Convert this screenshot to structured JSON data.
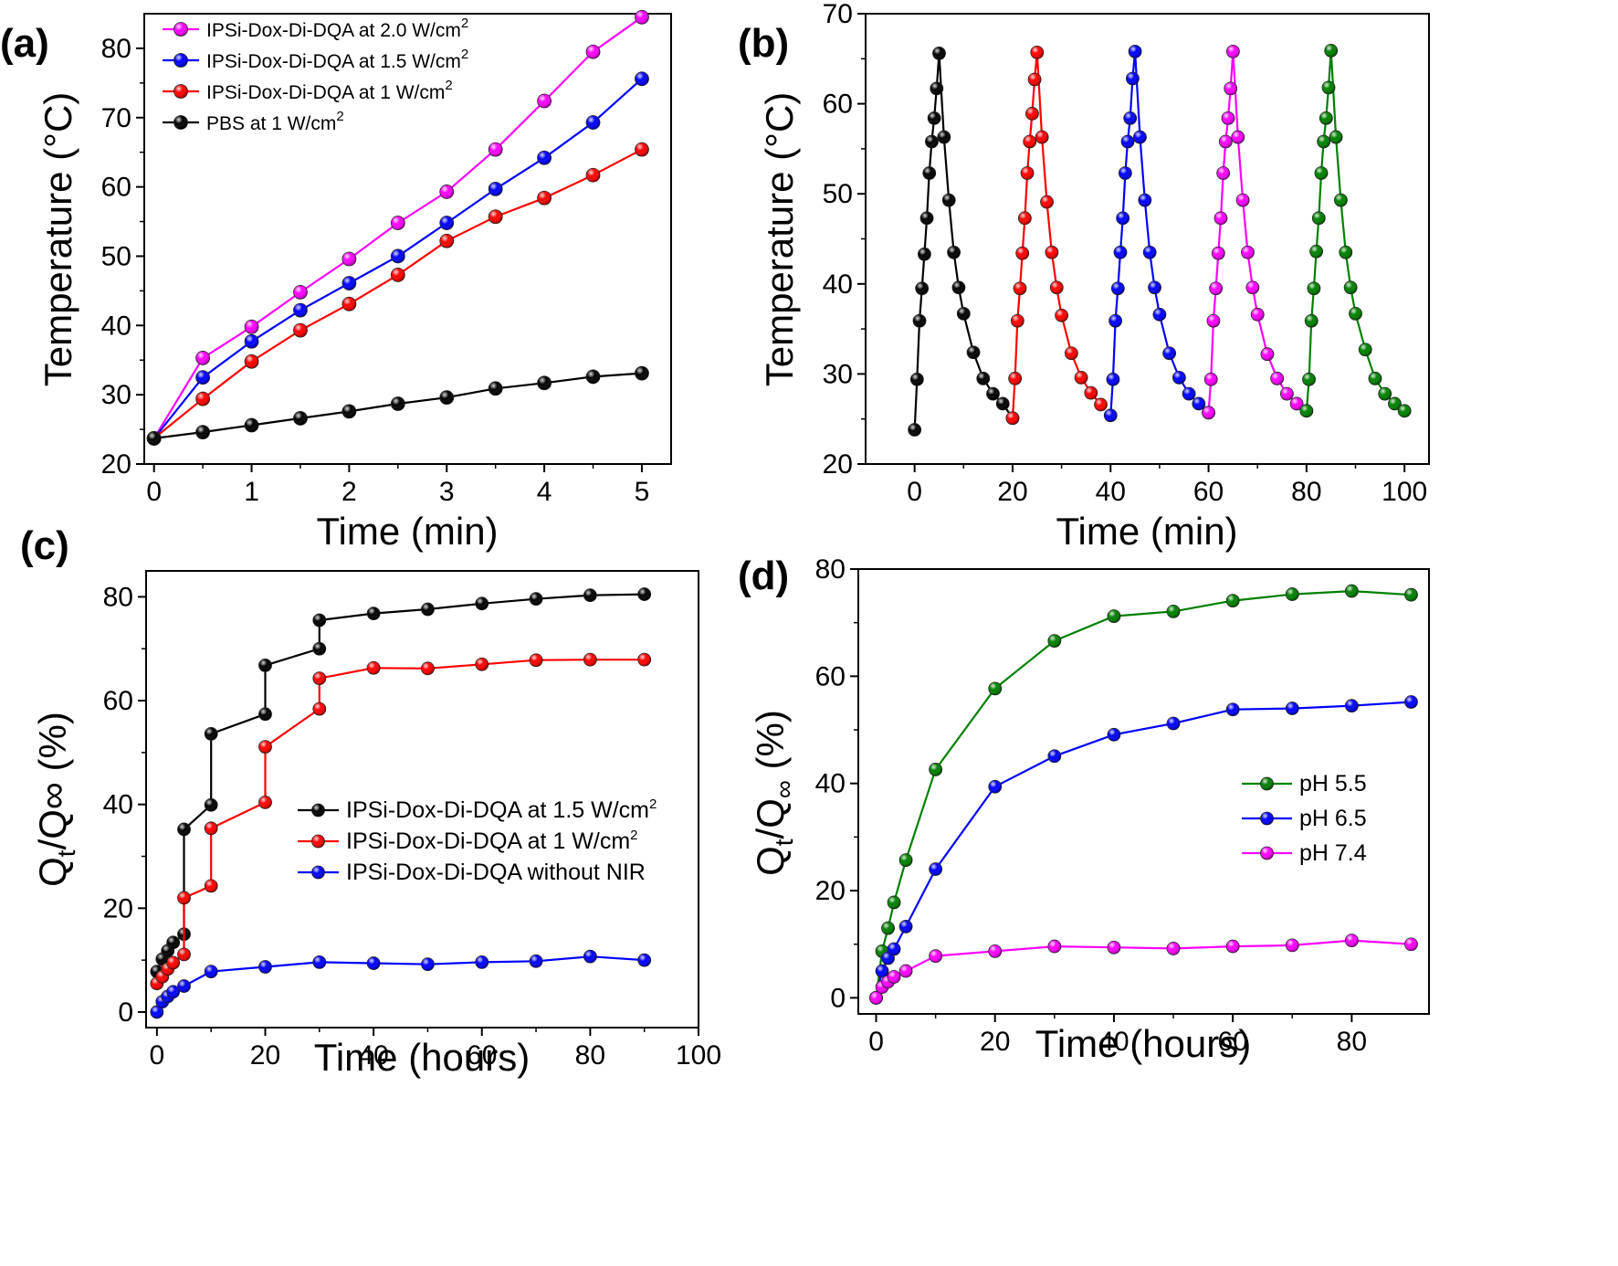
{
  "panels": {
    "a": {
      "label": "(a)"
    },
    "b": {
      "label": "(b)"
    },
    "c": {
      "label": "(c)"
    },
    "d": {
      "label": "(d)"
    }
  },
  "chart_data": [
    {
      "id": "a",
      "type": "line",
      "xlabel": "Time (min)",
      "ylabel": "Temperature (°C)",
      "xlim": [
        -0.1,
        5.3
      ],
      "ylim": [
        20,
        85
      ],
      "xticks": [
        0,
        1,
        2,
        3,
        4,
        5
      ],
      "yticks": [
        20,
        30,
        40,
        50,
        60,
        70,
        80
      ],
      "legend_position": "top-left",
      "series": [
        {
          "name": "IPSi-Dox-Di-DQA at 2.0 W/cm",
          "sup": "2",
          "color": "#ff00ff",
          "x": [
            0,
            0.5,
            1,
            1.5,
            2,
            2.5,
            3,
            3.5,
            4,
            4.5,
            5
          ],
          "y": [
            23.7,
            35.3,
            39.8,
            44.8,
            49.6,
            54.8,
            59.3,
            65.4,
            72.4,
            79.5,
            84.5
          ]
        },
        {
          "name": "IPSi-Dox-Di-DQA at 1.5 W/cm",
          "sup": "2",
          "color": "#0000ff",
          "x": [
            0,
            0.5,
            1,
            1.5,
            2,
            2.5,
            3,
            3.5,
            4,
            4.5,
            5
          ],
          "y": [
            23.7,
            32.5,
            37.7,
            42.2,
            46.1,
            50.0,
            54.8,
            59.7,
            64.2,
            69.3,
            75.6
          ]
        },
        {
          "name": "IPSi-Dox-Di-DQA at 1 W/cm",
          "sup": "2",
          "color": "#ff0000",
          "x": [
            0,
            0.5,
            1,
            1.5,
            2,
            2.5,
            3,
            3.5,
            4,
            4.5,
            5
          ],
          "y": [
            23.7,
            29.4,
            34.8,
            39.3,
            43.1,
            47.3,
            52.2,
            55.7,
            58.4,
            61.7,
            65.4
          ]
        },
        {
          "name": "PBS at 1 W/cm",
          "sup": "2",
          "color": "#000000",
          "x": [
            0,
            0.5,
            1,
            1.5,
            2,
            2.5,
            3,
            3.5,
            4,
            4.5,
            5
          ],
          "y": [
            23.7,
            24.6,
            25.6,
            26.6,
            27.6,
            28.7,
            29.6,
            30.9,
            31.7,
            32.6,
            33.1
          ]
        }
      ]
    },
    {
      "id": "b",
      "type": "line",
      "xlabel": "Time (min)",
      "ylabel": "Temperature (°C)",
      "xlim": [
        -10,
        105
      ],
      "ylim": [
        20,
        70
      ],
      "xticks": [
        0,
        20,
        40,
        60,
        80,
        100
      ],
      "yticks": [
        20,
        30,
        40,
        50,
        60,
        70
      ],
      "series": [
        {
          "color": "#000000",
          "x": [
            0,
            0.5,
            1,
            1.5,
            2,
            2.5,
            3,
            3.5,
            4,
            4.5,
            5,
            6,
            7,
            8,
            9,
            10,
            12,
            14,
            16,
            18,
            20
          ],
          "y": [
            23.8,
            29.4,
            35.9,
            39.5,
            43.3,
            47.3,
            52.3,
            55.8,
            58.4,
            61.7,
            65.6,
            56.3,
            49.3,
            43.5,
            39.6,
            36.7,
            32.4,
            29.5,
            27.8,
            26.7,
            25.1
          ]
        },
        {
          "color": "#ff0000",
          "x": [
            20,
            20.5,
            21,
            21.5,
            22,
            22.5,
            23,
            23.5,
            24,
            24.5,
            25,
            26,
            27,
            28,
            29,
            30,
            32,
            34,
            36,
            38
          ],
          "y": [
            25.1,
            29.5,
            35.9,
            39.5,
            43.4,
            47.3,
            52.3,
            55.8,
            58.9,
            62.7,
            65.7,
            56.3,
            49.1,
            43.5,
            39.6,
            36.5,
            32.3,
            29.6,
            27.9,
            26.6
          ]
        },
        {
          "color": "#0000ff",
          "x": [
            40,
            40.5,
            41,
            41.5,
            42,
            42.5,
            43,
            43.5,
            44,
            44.5,
            45,
            46,
            47,
            48,
            49,
            50,
            52,
            54,
            56,
            58,
            60
          ],
          "y": [
            25.4,
            29.4,
            35.9,
            39.5,
            43.5,
            47.3,
            52.3,
            55.8,
            58.4,
            62.8,
            65.8,
            56.3,
            49.3,
            43.5,
            39.6,
            36.6,
            32.3,
            29.6,
            27.8,
            26.7,
            25.7
          ]
        },
        {
          "color": "#ff00ff",
          "x": [
            60,
            60.5,
            61,
            61.5,
            62,
            62.5,
            63,
            63.5,
            64,
            64.5,
            65,
            66,
            67,
            68,
            69,
            70,
            72,
            74,
            76,
            78
          ],
          "y": [
            25.7,
            29.4,
            35.9,
            39.5,
            43.4,
            47.3,
            52.3,
            55.8,
            58.4,
            61.7,
            65.8,
            56.3,
            49.3,
            43.5,
            39.6,
            36.6,
            32.2,
            29.5,
            27.8,
            26.7
          ]
        },
        {
          "color": "#008000",
          "x": [
            80,
            80.5,
            81,
            81.5,
            82,
            82.5,
            83,
            83.5,
            84,
            84.5,
            85,
            86,
            87,
            88,
            89,
            90,
            92,
            94,
            96,
            98,
            100
          ],
          "y": [
            25.9,
            29.4,
            35.9,
            39.5,
            43.6,
            47.3,
            52.3,
            55.8,
            58.4,
            61.8,
            65.9,
            56.3,
            49.3,
            43.5,
            39.6,
            36.7,
            32.7,
            29.5,
            27.8,
            26.7,
            25.9
          ]
        }
      ]
    },
    {
      "id": "c",
      "type": "line",
      "xlabel": "Time (hours)",
      "ylabel": "Q",
      "ylabel_sub": "t",
      "ylabel_rest": "/Q∞ (%)",
      "xlim": [
        -2,
        100
      ],
      "ylim": [
        -3,
        85
      ],
      "xticks": [
        0,
        20,
        40,
        60,
        80,
        100
      ],
      "yticks": [
        0,
        20,
        40,
        60,
        80
      ],
      "legend_position": "center-right",
      "series": [
        {
          "name": "IPSi-Dox-Di-DQA at 1.5 W/cm",
          "sup": "2",
          "color": "#000000",
          "x": [
            0,
            1,
            2,
            3,
            5,
            5,
            10,
            10,
            20,
            20,
            30,
            30,
            40,
            50,
            60,
            70,
            80,
            90
          ],
          "y": [
            7.8,
            10.2,
            11.8,
            13.4,
            15.0,
            35.2,
            39.9,
            53.6,
            57.4,
            66.8,
            70.0,
            75.5,
            76.8,
            77.6,
            78.7,
            79.6,
            80.3,
            80.5
          ]
        },
        {
          "name": "IPSi-Dox-Di-DQA at 1 W/cm",
          "sup": "2",
          "color": "#ff0000",
          "x": [
            0,
            1,
            2,
            3,
            5,
            5,
            10,
            10,
            20,
            20,
            30,
            30,
            40,
            50,
            60,
            70,
            80,
            90
          ],
          "y": [
            5.5,
            6.8,
            8.3,
            9.5,
            11.1,
            22.0,
            24.3,
            35.4,
            40.4,
            51.1,
            58.4,
            64.3,
            66.3,
            66.2,
            67.0,
            67.8,
            67.9,
            67.9
          ]
        },
        {
          "name": "IPSi-Dox-Di-DQA without NIR",
          "color": "#0000ff",
          "x": [
            0,
            1,
            2,
            3,
            5,
            10,
            20,
            30,
            40,
            50,
            60,
            70,
            80,
            90
          ],
          "y": [
            0,
            2.0,
            3.0,
            3.9,
            5.0,
            7.8,
            8.7,
            9.6,
            9.4,
            9.2,
            9.6,
            9.8,
            10.7,
            10.0
          ]
        }
      ]
    },
    {
      "id": "d",
      "type": "line",
      "xlabel": "Time (hours)",
      "ylabel": "Q",
      "ylabel_sub": "t",
      "ylabel_mid": "/Q",
      "ylabel_sub2": "∞",
      "ylabel_rest": "(%)",
      "xlim": [
        -3,
        93
      ],
      "ylim": [
        -3,
        80
      ],
      "xticks": [
        0,
        20,
        40,
        60,
        80
      ],
      "yticks": [
        0,
        20,
        40,
        60,
        80
      ],
      "legend_position": "center-right",
      "series": [
        {
          "name": "pH 5.5",
          "color": "#008000",
          "x": [
            0,
            1,
            2,
            3,
            5,
            10,
            20,
            30,
            40,
            50,
            60,
            70,
            80,
            90
          ],
          "y": [
            0,
            8.7,
            13.0,
            17.8,
            25.7,
            42.6,
            57.7,
            66.6,
            71.2,
            72.1,
            74.1,
            75.3,
            75.9,
            75.2
          ]
        },
        {
          "name": "pH 6.5",
          "color": "#0000ff",
          "x": [
            0,
            1,
            2,
            3,
            5,
            10,
            20,
            30,
            40,
            50,
            60,
            70,
            80,
            90
          ],
          "y": [
            0,
            5.0,
            7.4,
            9.1,
            13.3,
            24.0,
            39.4,
            45.1,
            49.1,
            51.2,
            53.8,
            54.0,
            54.5,
            55.2
          ]
        },
        {
          "name": "pH 7.4",
          "color": "#ff00ff",
          "x": [
            0,
            1,
            2,
            3,
            5,
            10,
            20,
            30,
            40,
            50,
            60,
            70,
            80,
            90
          ],
          "y": [
            0,
            2.0,
            3.0,
            3.9,
            5.0,
            7.8,
            8.7,
            9.6,
            9.4,
            9.2,
            9.6,
            9.8,
            10.7,
            10.0
          ]
        }
      ]
    }
  ]
}
